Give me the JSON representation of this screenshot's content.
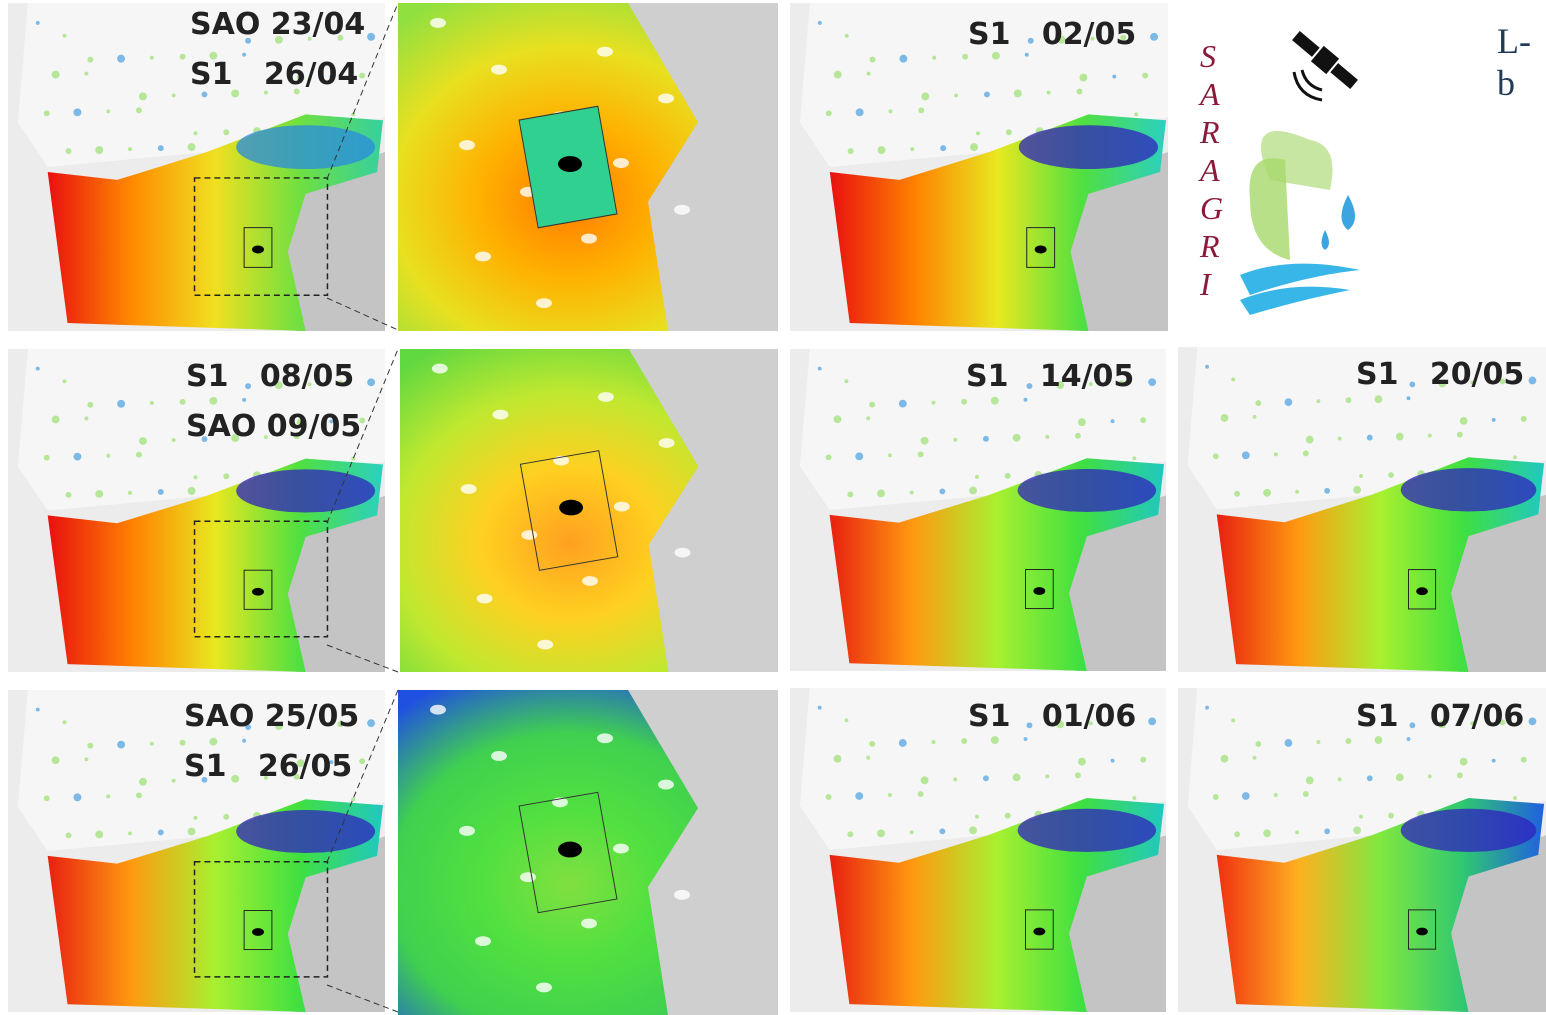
{
  "panels": [
    {
      "labels": [
        "SAO 23/04",
        "S1   26/04"
      ]
    },
    {
      "labels": [
        "S1   02/05"
      ]
    },
    {
      "labels": [
        "S1   08/05",
        "SAO 09/05"
      ]
    },
    {
      "labels": [
        "S1   14/05"
      ]
    },
    {
      "labels": [
        "S1   20/05"
      ]
    },
    {
      "labels": [
        "SAO 25/05",
        "S1   26/05"
      ]
    },
    {
      "labels": [
        "S1   01/06"
      ]
    },
    {
      "labels": [
        "S1   07/06"
      ]
    }
  ],
  "logo": {
    "letters": [
      "S",
      "A",
      "R",
      "A",
      "G",
      "R",
      "I"
    ]
  },
  "header_text": "L-b"
}
